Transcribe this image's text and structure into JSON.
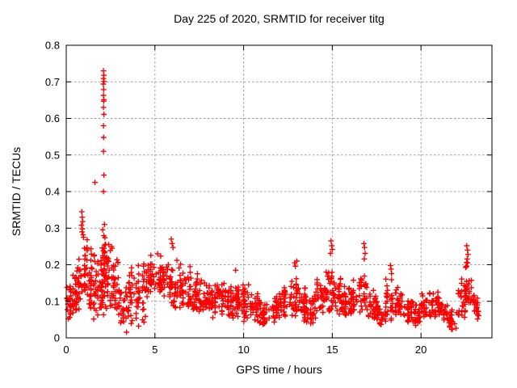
{
  "colors": {
    "points": "#ff0000",
    "grid": "#a0a0a0",
    "axis": "#000000",
    "background": "#ffffff",
    "text": "#000000"
  },
  "chart_data": {
    "type": "scatter",
    "title": "Day 225 of 2020, SRMTID for receiver titg",
    "xlabel": "GPS time / hours",
    "ylabel": "SRMTID / TECUs",
    "xlim": [
      0,
      24
    ],
    "ylim": [
      0,
      0.8
    ],
    "xtick_values": [
      0,
      5,
      10,
      15,
      20
    ],
    "xtick_labels": [
      "0",
      "5",
      "10",
      "15",
      "20"
    ],
    "ytick_values": [
      0,
      0.1,
      0.2,
      0.3,
      0.4,
      0.5,
      0.6,
      0.7,
      0.8
    ],
    "ytick_labels": [
      "0",
      "0.1",
      "0.2",
      "0.3",
      "0.4",
      "0.5",
      "0.6",
      "0.7",
      "0.8"
    ],
    "grid": true,
    "legend": false,
    "marker": "plus",
    "marker_color": "#ff0000",
    "x_range_of_data": [
      0.0,
      23.25
    ],
    "outlier_points": [
      [
        2.1,
        0.73
      ],
      [
        2.12,
        0.718
      ],
      [
        2.1,
        0.709
      ],
      [
        2.13,
        0.701
      ],
      [
        2.09,
        0.694
      ],
      [
        2.11,
        0.679
      ],
      [
        2.1,
        0.663
      ],
      [
        2.12,
        0.651
      ],
      [
        2.11,
        0.647
      ],
      [
        2.1,
        0.63
      ],
      [
        2.12,
        0.611
      ],
      [
        2.1,
        0.58
      ],
      [
        2.11,
        0.548
      ],
      [
        2.1,
        0.51
      ],
      [
        2.12,
        0.445
      ],
      [
        2.1,
        0.4
      ],
      [
        1.62,
        0.425
      ],
      [
        0.88,
        0.345
      ],
      [
        0.9,
        0.33
      ],
      [
        0.93,
        0.318
      ],
      [
        0.86,
        0.308
      ],
      [
        0.91,
        0.298
      ],
      [
        0.89,
        0.29
      ],
      [
        0.95,
        0.282
      ],
      [
        0.97,
        0.275
      ],
      [
        5.92,
        0.27
      ],
      [
        5.97,
        0.258
      ],
      [
        6.02,
        0.247
      ],
      [
        14.93,
        0.265
      ],
      [
        14.97,
        0.252
      ],
      [
        15.0,
        0.242
      ],
      [
        14.9,
        0.231
      ],
      [
        16.78,
        0.258
      ],
      [
        16.82,
        0.247
      ],
      [
        16.85,
        0.231
      ],
      [
        16.8,
        0.216
      ],
      [
        18.28,
        0.198
      ],
      [
        18.31,
        0.188
      ],
      [
        18.34,
        0.176
      ],
      [
        22.58,
        0.252
      ],
      [
        22.62,
        0.24
      ],
      [
        22.65,
        0.228
      ],
      [
        22.6,
        0.216
      ],
      [
        22.63,
        0.205
      ],
      [
        22.57,
        0.196
      ],
      [
        12.88,
        0.205
      ],
      [
        12.92,
        0.196
      ],
      [
        13.0,
        0.21
      ],
      [
        9.55,
        0.185
      ]
    ],
    "density_bands_format": [
      "x_start",
      "x_end",
      "y_min",
      "y_max",
      "n_points"
    ],
    "density_bands": [
      [
        0.0,
        0.3,
        0.05,
        0.17,
        24
      ],
      [
        0.3,
        0.6,
        0.06,
        0.18,
        24
      ],
      [
        0.6,
        0.9,
        0.07,
        0.24,
        26
      ],
      [
        0.9,
        1.2,
        0.08,
        0.3,
        28
      ],
      [
        1.2,
        1.5,
        0.07,
        0.26,
        26
      ],
      [
        1.5,
        1.8,
        0.05,
        0.24,
        26
      ],
      [
        1.8,
        2.05,
        0.05,
        0.27,
        24
      ],
      [
        2.05,
        2.25,
        0.05,
        0.34,
        30
      ],
      [
        2.25,
        2.6,
        0.05,
        0.28,
        28
      ],
      [
        2.6,
        3.0,
        0.05,
        0.25,
        30
      ],
      [
        3.0,
        3.5,
        0.01,
        0.16,
        30
      ],
      [
        3.5,
        4.0,
        0.03,
        0.22,
        32
      ],
      [
        4.0,
        4.5,
        0.03,
        0.24,
        32
      ],
      [
        4.5,
        5.0,
        0.09,
        0.235,
        34
      ],
      [
        5.0,
        5.5,
        0.11,
        0.24,
        32
      ],
      [
        5.5,
        6.0,
        0.08,
        0.24,
        30
      ],
      [
        6.0,
        6.5,
        0.07,
        0.22,
        30
      ],
      [
        6.5,
        7.0,
        0.07,
        0.2,
        30
      ],
      [
        7.0,
        7.5,
        0.06,
        0.18,
        32
      ],
      [
        7.5,
        8.0,
        0.06,
        0.17,
        32
      ],
      [
        8.0,
        8.5,
        0.05,
        0.16,
        32
      ],
      [
        8.5,
        9.0,
        0.05,
        0.17,
        32
      ],
      [
        9.0,
        9.5,
        0.05,
        0.18,
        32
      ],
      [
        9.5,
        10.0,
        0.05,
        0.16,
        32
      ],
      [
        10.0,
        10.5,
        0.04,
        0.15,
        32
      ],
      [
        10.5,
        11.0,
        0.04,
        0.13,
        30
      ],
      [
        11.0,
        11.5,
        0.03,
        0.1,
        28
      ],
      [
        11.5,
        12.0,
        0.04,
        0.12,
        30
      ],
      [
        12.0,
        12.5,
        0.05,
        0.15,
        30
      ],
      [
        12.5,
        13.0,
        0.05,
        0.19,
        30
      ],
      [
        13.0,
        13.5,
        0.04,
        0.15,
        30
      ],
      [
        13.5,
        14.0,
        0.03,
        0.13,
        28
      ],
      [
        14.0,
        14.5,
        0.05,
        0.17,
        30
      ],
      [
        14.5,
        15.0,
        0.06,
        0.22,
        30
      ],
      [
        15.0,
        15.5,
        0.06,
        0.18,
        30
      ],
      [
        15.5,
        16.0,
        0.05,
        0.15,
        30
      ],
      [
        16.0,
        16.5,
        0.06,
        0.17,
        30
      ],
      [
        16.5,
        17.0,
        0.06,
        0.2,
        30
      ],
      [
        17.0,
        17.5,
        0.05,
        0.15,
        28
      ],
      [
        17.5,
        18.0,
        0.03,
        0.1,
        26
      ],
      [
        18.0,
        18.5,
        0.04,
        0.17,
        28
      ],
      [
        18.5,
        19.0,
        0.05,
        0.15,
        28
      ],
      [
        19.0,
        19.5,
        0.04,
        0.12,
        28
      ],
      [
        19.5,
        20.0,
        0.03,
        0.11,
        26
      ],
      [
        20.0,
        20.5,
        0.05,
        0.13,
        28
      ],
      [
        20.5,
        21.0,
        0.05,
        0.14,
        28
      ],
      [
        21.0,
        21.5,
        0.04,
        0.11,
        26
      ],
      [
        21.5,
        22.0,
        0.02,
        0.08,
        26
      ],
      [
        22.0,
        22.5,
        0.05,
        0.17,
        28
      ],
      [
        22.5,
        22.85,
        0.07,
        0.22,
        24
      ],
      [
        22.85,
        23.25,
        0.05,
        0.13,
        22
      ]
    ]
  }
}
